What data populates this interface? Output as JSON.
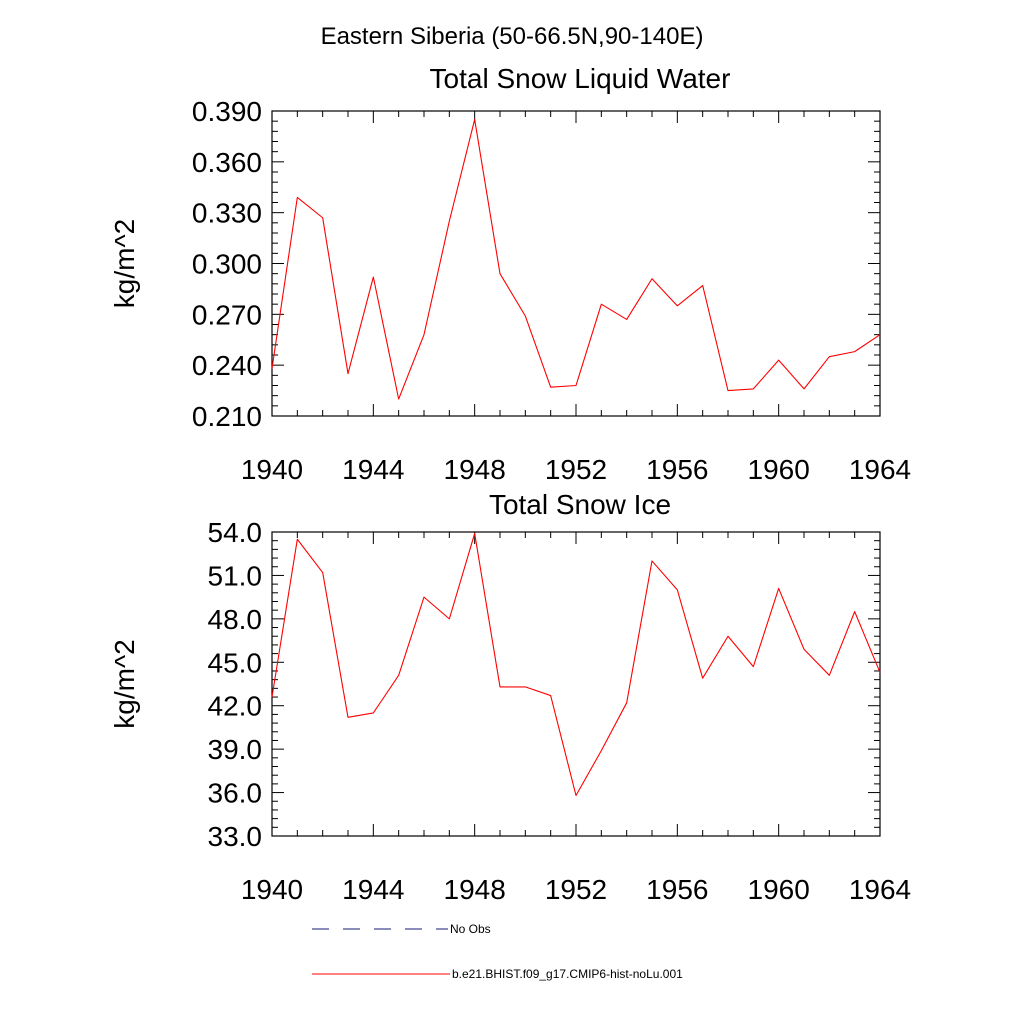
{
  "figure": {
    "suptitle": "Eastern Siberia (50-66.5N,90-140E)"
  },
  "chart_data": [
    {
      "type": "line",
      "title": "Total Snow Liquid Water",
      "xlabel": "",
      "ylabel": "kg/m^2",
      "xlim": [
        1940,
        1964
      ],
      "ylim": [
        0.21,
        0.39
      ],
      "x_ticks": [
        1940,
        1944,
        1948,
        1952,
        1956,
        1960,
        1964
      ],
      "x_tick_labels": [
        "1940",
        "1944",
        "1948",
        "1952",
        "1956",
        "1960",
        "1964"
      ],
      "y_ticks": [
        0.21,
        0.24,
        0.27,
        0.3,
        0.33,
        0.36,
        0.39
      ],
      "y_tick_labels": [
        "0.210",
        "0.240",
        "0.270",
        "0.300",
        "0.330",
        "0.360",
        "0.390"
      ],
      "grid": false,
      "x": [
        1940,
        1941,
        1942,
        1943,
        1944,
        1945,
        1946,
        1947,
        1948,
        1949,
        1950,
        1951,
        1952,
        1953,
        1954,
        1955,
        1956,
        1957,
        1958,
        1959,
        1960,
        1961,
        1962,
        1963,
        1964
      ],
      "series": [
        {
          "name": "b.e21.BHIST.f09_g17.CMIP6-hist-noLu.001",
          "color": "#ff0000",
          "values": [
            0.238,
            0.339,
            0.327,
            0.235,
            0.292,
            0.22,
            0.258,
            0.325,
            0.385,
            0.294,
            0.269,
            0.227,
            0.228,
            0.276,
            0.267,
            0.291,
            0.275,
            0.287,
            0.225,
            0.226,
            0.243,
            0.226,
            0.245,
            0.248,
            0.258
          ]
        }
      ]
    },
    {
      "type": "line",
      "title": "Total Snow Ice",
      "xlabel": "",
      "ylabel": "kg/m^2",
      "xlim": [
        1940,
        1964
      ],
      "ylim": [
        33.0,
        54.0
      ],
      "x_ticks": [
        1940,
        1944,
        1948,
        1952,
        1956,
        1960,
        1964
      ],
      "x_tick_labels": [
        "1940",
        "1944",
        "1948",
        "1952",
        "1956",
        "1960",
        "1964"
      ],
      "y_ticks": [
        33,
        36,
        39,
        42,
        45,
        48,
        51,
        54
      ],
      "y_tick_labels": [
        "33.0",
        "36.0",
        "39.0",
        "42.0",
        "45.0",
        "48.0",
        "51.0",
        "54.0"
      ],
      "grid": false,
      "x": [
        1940,
        1941,
        1942,
        1943,
        1944,
        1945,
        1946,
        1947,
        1948,
        1949,
        1950,
        1951,
        1952,
        1953,
        1954,
        1955,
        1956,
        1957,
        1958,
        1959,
        1960,
        1961,
        1962,
        1963,
        1964
      ],
      "series": [
        {
          "name": "b.e21.BHIST.f09_g17.CMIP6-hist-noLu.001",
          "color": "#ff0000",
          "values": [
            42.6,
            53.5,
            51.2,
            41.2,
            41.5,
            44.1,
            49.5,
            48.0,
            53.9,
            43.3,
            43.3,
            42.7,
            35.8,
            38.9,
            42.2,
            52.0,
            50.0,
            43.9,
            46.8,
            44.7,
            50.1,
            45.9,
            44.1,
            48.5,
            44.3
          ]
        }
      ]
    }
  ],
  "legend": {
    "placement": "bottom",
    "entries": [
      {
        "label": "No Obs",
        "color": "#1a1a7a",
        "style": "dashed"
      },
      {
        "label": "b.e21.BHIST.f09_g17.CMIP6-hist-noLu.001",
        "color": "#ff0000",
        "style": "solid"
      }
    ]
  }
}
